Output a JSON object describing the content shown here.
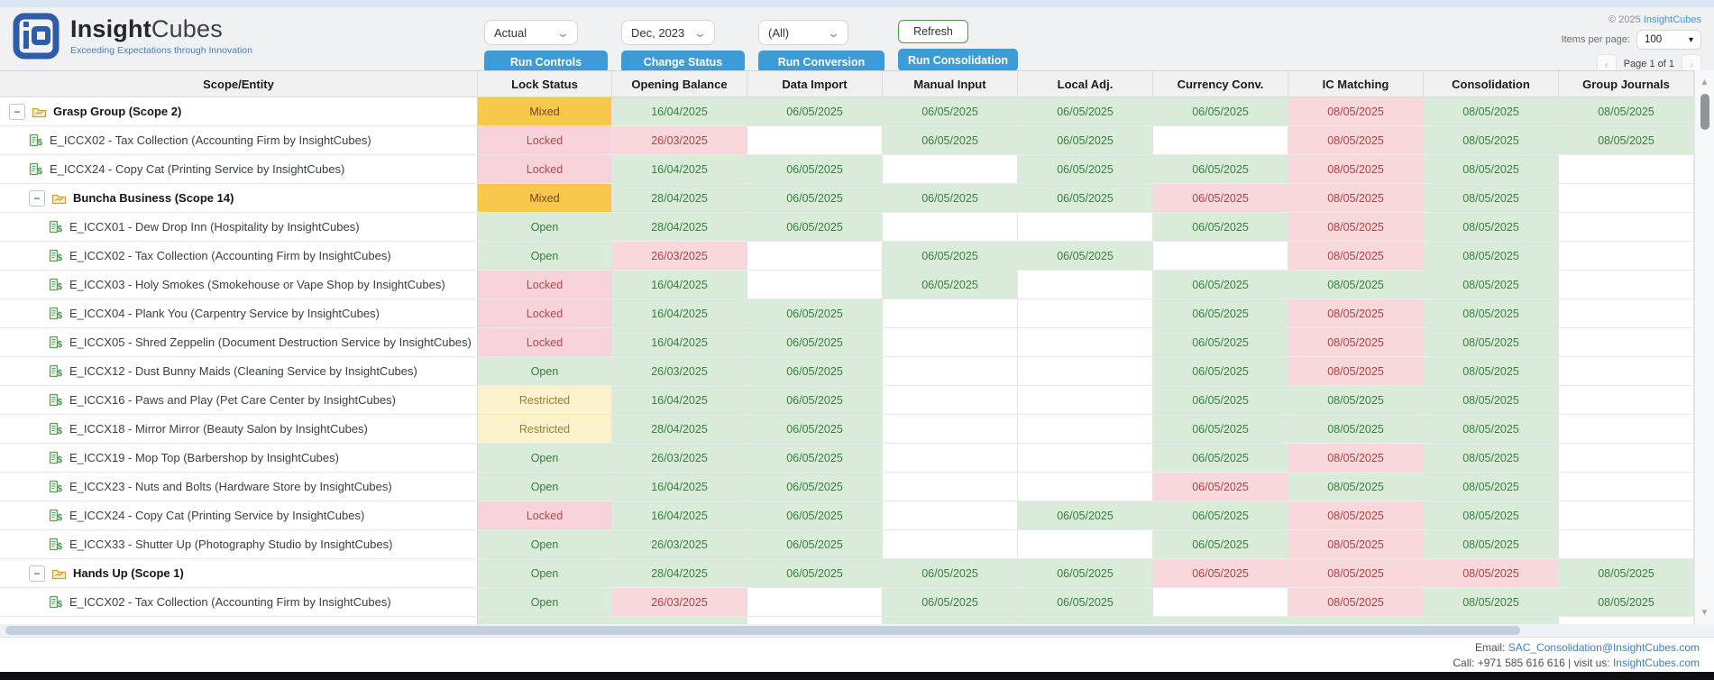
{
  "header": {
    "brand_bold": "Insight",
    "brand_light": "Cubes",
    "tagline": "Exceeding Expectations through Innovation",
    "filters": {
      "version": "Actual",
      "period": "Dec, 2023",
      "scope": "(All)"
    },
    "buttons": {
      "run_controls": "Run Controls",
      "change_status": "Change Status",
      "run_conversion": "Run Conversion",
      "run_consolidation": "Run Consolidation",
      "refresh": "Refresh"
    },
    "copyright_prefix": "© 2025 ",
    "copyright_brand": "InsightCubes",
    "items_per_page_label": "Items per page:",
    "items_per_page_value": "100",
    "pagination": {
      "prev": "‹",
      "label": "Page 1 of 1",
      "next": "›"
    }
  },
  "table": {
    "columns": [
      "Scope/Entity",
      "Lock Status",
      "Opening Balance",
      "Data Import",
      "Manual Input",
      "Local Adj.",
      "Currency Conv.",
      "IC Matching",
      "Consolidation",
      "Group Journals"
    ],
    "rows": [
      {
        "type": "scope",
        "indent": 0,
        "label": "Grasp Group (Scope 2)",
        "lock": {
          "label": "Mixed",
          "state": "mixed"
        },
        "cells": [
          {
            "text": "16/04/2025",
            "state": "green"
          },
          {
            "text": "06/05/2025",
            "state": "green"
          },
          {
            "text": "06/05/2025",
            "state": "green"
          },
          {
            "text": "06/05/2025",
            "state": "green"
          },
          {
            "text": "06/05/2025",
            "state": "green"
          },
          {
            "text": "08/05/2025",
            "state": "pink"
          },
          {
            "text": "08/05/2025",
            "state": "green"
          },
          {
            "text": "08/05/2025",
            "state": "green"
          }
        ]
      },
      {
        "type": "entity",
        "indent": 1,
        "label": "E_ICCX02 - Tax Collection (Accounting Firm by InsightCubes)",
        "lock": {
          "label": "Locked",
          "state": "locked"
        },
        "cells": [
          {
            "text": "26/03/2025",
            "state": "pink"
          },
          {
            "text": "",
            "state": "empty"
          },
          {
            "text": "06/05/2025",
            "state": "green"
          },
          {
            "text": "06/05/2025",
            "state": "green"
          },
          {
            "text": "",
            "state": "empty"
          },
          {
            "text": "08/05/2025",
            "state": "pink"
          },
          {
            "text": "08/05/2025",
            "state": "green"
          },
          {
            "text": "08/05/2025",
            "state": "green"
          }
        ]
      },
      {
        "type": "entity",
        "indent": 1,
        "label": "E_ICCX24 - Copy Cat (Printing Service by InsightCubes)",
        "lock": {
          "label": "Locked",
          "state": "locked"
        },
        "cells": [
          {
            "text": "16/04/2025",
            "state": "green"
          },
          {
            "text": "06/05/2025",
            "state": "green"
          },
          {
            "text": "",
            "state": "empty"
          },
          {
            "text": "06/05/2025",
            "state": "green"
          },
          {
            "text": "06/05/2025",
            "state": "green"
          },
          {
            "text": "08/05/2025",
            "state": "pink"
          },
          {
            "text": "08/05/2025",
            "state": "green"
          },
          {
            "text": "",
            "state": "empty"
          }
        ]
      },
      {
        "type": "scope",
        "indent": 1,
        "label": "Buncha Business (Scope 14)",
        "lock": {
          "label": "Mixed",
          "state": "mixed"
        },
        "cells": [
          {
            "text": "28/04/2025",
            "state": "green"
          },
          {
            "text": "06/05/2025",
            "state": "green"
          },
          {
            "text": "06/05/2025",
            "state": "green"
          },
          {
            "text": "06/05/2025",
            "state": "green"
          },
          {
            "text": "06/05/2025",
            "state": "pink"
          },
          {
            "text": "08/05/2025",
            "state": "pink"
          },
          {
            "text": "08/05/2025",
            "state": "green"
          },
          {
            "text": "",
            "state": "empty"
          }
        ]
      },
      {
        "type": "entity",
        "indent": 2,
        "label": "E_ICCX01 - Dew Drop Inn (Hospitality by InsightCubes)",
        "lock": {
          "label": "Open",
          "state": "open"
        },
        "cells": [
          {
            "text": "28/04/2025",
            "state": "green"
          },
          {
            "text": "06/05/2025",
            "state": "green"
          },
          {
            "text": "",
            "state": "empty"
          },
          {
            "text": "",
            "state": "empty"
          },
          {
            "text": "06/05/2025",
            "state": "green"
          },
          {
            "text": "08/05/2025",
            "state": "pink"
          },
          {
            "text": "08/05/2025",
            "state": "green"
          },
          {
            "text": "",
            "state": "empty"
          }
        ]
      },
      {
        "type": "entity",
        "indent": 2,
        "label": "E_ICCX02 - Tax Collection (Accounting Firm by InsightCubes)",
        "lock": {
          "label": "Open",
          "state": "open"
        },
        "cells": [
          {
            "text": "26/03/2025",
            "state": "pink"
          },
          {
            "text": "",
            "state": "empty"
          },
          {
            "text": "06/05/2025",
            "state": "green"
          },
          {
            "text": "06/05/2025",
            "state": "green"
          },
          {
            "text": "",
            "state": "empty"
          },
          {
            "text": "08/05/2025",
            "state": "pink"
          },
          {
            "text": "08/05/2025",
            "state": "green"
          },
          {
            "text": "",
            "state": "empty"
          }
        ]
      },
      {
        "type": "entity",
        "indent": 2,
        "label": "E_ICCX03 - Holy Smokes (Smokehouse or Vape Shop by InsightCubes)",
        "lock": {
          "label": "Locked",
          "state": "locked"
        },
        "cells": [
          {
            "text": "16/04/2025",
            "state": "green"
          },
          {
            "text": "",
            "state": "empty"
          },
          {
            "text": "06/05/2025",
            "state": "green"
          },
          {
            "text": "",
            "state": "empty"
          },
          {
            "text": "06/05/2025",
            "state": "green"
          },
          {
            "text": "08/05/2025",
            "state": "green"
          },
          {
            "text": "08/05/2025",
            "state": "green"
          },
          {
            "text": "",
            "state": "empty"
          }
        ]
      },
      {
        "type": "entity",
        "indent": 2,
        "label": "E_ICCX04 - Plank You (Carpentry Service by InsightCubes)",
        "lock": {
          "label": "Locked",
          "state": "locked"
        },
        "cells": [
          {
            "text": "16/04/2025",
            "state": "green"
          },
          {
            "text": "06/05/2025",
            "state": "green"
          },
          {
            "text": "",
            "state": "empty"
          },
          {
            "text": "",
            "state": "empty"
          },
          {
            "text": "06/05/2025",
            "state": "green"
          },
          {
            "text": "08/05/2025",
            "state": "pink"
          },
          {
            "text": "08/05/2025",
            "state": "green"
          },
          {
            "text": "",
            "state": "empty"
          }
        ]
      },
      {
        "type": "entity",
        "indent": 2,
        "label": "E_ICCX05 - Shred Zeppelin (Document Destruction Service by InsightCubes)",
        "lock": {
          "label": "Locked",
          "state": "locked"
        },
        "cells": [
          {
            "text": "16/04/2025",
            "state": "green"
          },
          {
            "text": "06/05/2025",
            "state": "green"
          },
          {
            "text": "",
            "state": "empty"
          },
          {
            "text": "",
            "state": "empty"
          },
          {
            "text": "06/05/2025",
            "state": "green"
          },
          {
            "text": "08/05/2025",
            "state": "pink"
          },
          {
            "text": "08/05/2025",
            "state": "green"
          },
          {
            "text": "",
            "state": "empty"
          }
        ]
      },
      {
        "type": "entity",
        "indent": 2,
        "label": "E_ICCX12 - Dust Bunny Maids (Cleaning Service by InsightCubes)",
        "lock": {
          "label": "Open",
          "state": "open"
        },
        "cells": [
          {
            "text": "26/03/2025",
            "state": "green"
          },
          {
            "text": "06/05/2025",
            "state": "green"
          },
          {
            "text": "",
            "state": "empty"
          },
          {
            "text": "",
            "state": "empty"
          },
          {
            "text": "06/05/2025",
            "state": "green"
          },
          {
            "text": "08/05/2025",
            "state": "pink"
          },
          {
            "text": "08/05/2025",
            "state": "green"
          },
          {
            "text": "",
            "state": "empty"
          }
        ]
      },
      {
        "type": "entity",
        "indent": 2,
        "label": "E_ICCX16 - Paws and Play (Pet Care Center by InsightCubes)",
        "lock": {
          "label": "Restricted",
          "state": "restricted"
        },
        "cells": [
          {
            "text": "16/04/2025",
            "state": "green"
          },
          {
            "text": "06/05/2025",
            "state": "green"
          },
          {
            "text": "",
            "state": "empty"
          },
          {
            "text": "",
            "state": "empty"
          },
          {
            "text": "06/05/2025",
            "state": "green"
          },
          {
            "text": "08/05/2025",
            "state": "green"
          },
          {
            "text": "08/05/2025",
            "state": "green"
          },
          {
            "text": "",
            "state": "empty"
          }
        ]
      },
      {
        "type": "entity",
        "indent": 2,
        "label": "E_ICCX18 - Mirror Mirror (Beauty Salon by InsightCubes)",
        "lock": {
          "label": "Restricted",
          "state": "restricted"
        },
        "cells": [
          {
            "text": "28/04/2025",
            "state": "green"
          },
          {
            "text": "06/05/2025",
            "state": "green"
          },
          {
            "text": "",
            "state": "empty"
          },
          {
            "text": "",
            "state": "empty"
          },
          {
            "text": "06/05/2025",
            "state": "green"
          },
          {
            "text": "08/05/2025",
            "state": "green"
          },
          {
            "text": "08/05/2025",
            "state": "green"
          },
          {
            "text": "",
            "state": "empty"
          }
        ]
      },
      {
        "type": "entity",
        "indent": 2,
        "label": "E_ICCX19 - Mop Top (Barbershop by InsightCubes)",
        "lock": {
          "label": "Open",
          "state": "open"
        },
        "cells": [
          {
            "text": "26/03/2025",
            "state": "green"
          },
          {
            "text": "06/05/2025",
            "state": "green"
          },
          {
            "text": "",
            "state": "empty"
          },
          {
            "text": "",
            "state": "empty"
          },
          {
            "text": "06/05/2025",
            "state": "green"
          },
          {
            "text": "08/05/2025",
            "state": "pink"
          },
          {
            "text": "08/05/2025",
            "state": "green"
          },
          {
            "text": "",
            "state": "empty"
          }
        ]
      },
      {
        "type": "entity",
        "indent": 2,
        "label": "E_ICCX23 - Nuts and Bolts (Hardware Store by InsightCubes)",
        "lock": {
          "label": "Open",
          "state": "open"
        },
        "cells": [
          {
            "text": "16/04/2025",
            "state": "green"
          },
          {
            "text": "06/05/2025",
            "state": "green"
          },
          {
            "text": "",
            "state": "empty"
          },
          {
            "text": "",
            "state": "empty"
          },
          {
            "text": "06/05/2025",
            "state": "pink"
          },
          {
            "text": "08/05/2025",
            "state": "green"
          },
          {
            "text": "08/05/2025",
            "state": "green"
          },
          {
            "text": "",
            "state": "empty"
          }
        ]
      },
      {
        "type": "entity",
        "indent": 2,
        "label": "E_ICCX24 - Copy Cat (Printing Service by InsightCubes)",
        "lock": {
          "label": "Locked",
          "state": "locked"
        },
        "cells": [
          {
            "text": "16/04/2025",
            "state": "green"
          },
          {
            "text": "06/05/2025",
            "state": "green"
          },
          {
            "text": "",
            "state": "empty"
          },
          {
            "text": "06/05/2025",
            "state": "green"
          },
          {
            "text": "06/05/2025",
            "state": "green"
          },
          {
            "text": "08/05/2025",
            "state": "pink"
          },
          {
            "text": "08/05/2025",
            "state": "green"
          },
          {
            "text": "",
            "state": "empty"
          }
        ]
      },
      {
        "type": "entity",
        "indent": 2,
        "label": "E_ICCX33 - Shutter Up (Photography Studio by InsightCubes)",
        "lock": {
          "label": "Open",
          "state": "open"
        },
        "cells": [
          {
            "text": "26/03/2025",
            "state": "green"
          },
          {
            "text": "06/05/2025",
            "state": "green"
          },
          {
            "text": "",
            "state": "empty"
          },
          {
            "text": "",
            "state": "empty"
          },
          {
            "text": "06/05/2025",
            "state": "green"
          },
          {
            "text": "08/05/2025",
            "state": "pink"
          },
          {
            "text": "08/05/2025",
            "state": "green"
          },
          {
            "text": "",
            "state": "empty"
          }
        ]
      },
      {
        "type": "scope",
        "indent": 1,
        "label": "Hands Up (Scope 1)",
        "lock": {
          "label": "Open",
          "state": "open"
        },
        "cells": [
          {
            "text": "28/04/2025",
            "state": "green"
          },
          {
            "text": "06/05/2025",
            "state": "green"
          },
          {
            "text": "06/05/2025",
            "state": "green"
          },
          {
            "text": "06/05/2025",
            "state": "green"
          },
          {
            "text": "06/05/2025",
            "state": "pink"
          },
          {
            "text": "08/05/2025",
            "state": "pink"
          },
          {
            "text": "08/05/2025",
            "state": "pink"
          },
          {
            "text": "08/05/2025",
            "state": "green"
          }
        ]
      },
      {
        "type": "entity",
        "indent": 2,
        "label": "E_ICCX02 - Tax Collection (Accounting Firm by InsightCubes)",
        "lock": {
          "label": "Open",
          "state": "open"
        },
        "cells": [
          {
            "text": "26/03/2025",
            "state": "pink"
          },
          {
            "text": "",
            "state": "empty"
          },
          {
            "text": "06/05/2025",
            "state": "green"
          },
          {
            "text": "06/05/2025",
            "state": "green"
          },
          {
            "text": "",
            "state": "empty"
          },
          {
            "text": "08/05/2025",
            "state": "pink"
          },
          {
            "text": "08/05/2025",
            "state": "green"
          },
          {
            "text": "08/05/2025",
            "state": "green"
          }
        ]
      }
    ],
    "partial_row": {
      "lock_state": "green",
      "cell_states": [
        "green",
        "empty",
        "green",
        "green",
        "green",
        "green",
        "green",
        "empty"
      ]
    }
  },
  "footer": {
    "email_label": "Email: ",
    "email": "SAC_Consolidation@InsightCubes.com",
    "call_label": "Call: +971 585 616 616 | visit us: ",
    "site": "InsightCubes.com"
  }
}
